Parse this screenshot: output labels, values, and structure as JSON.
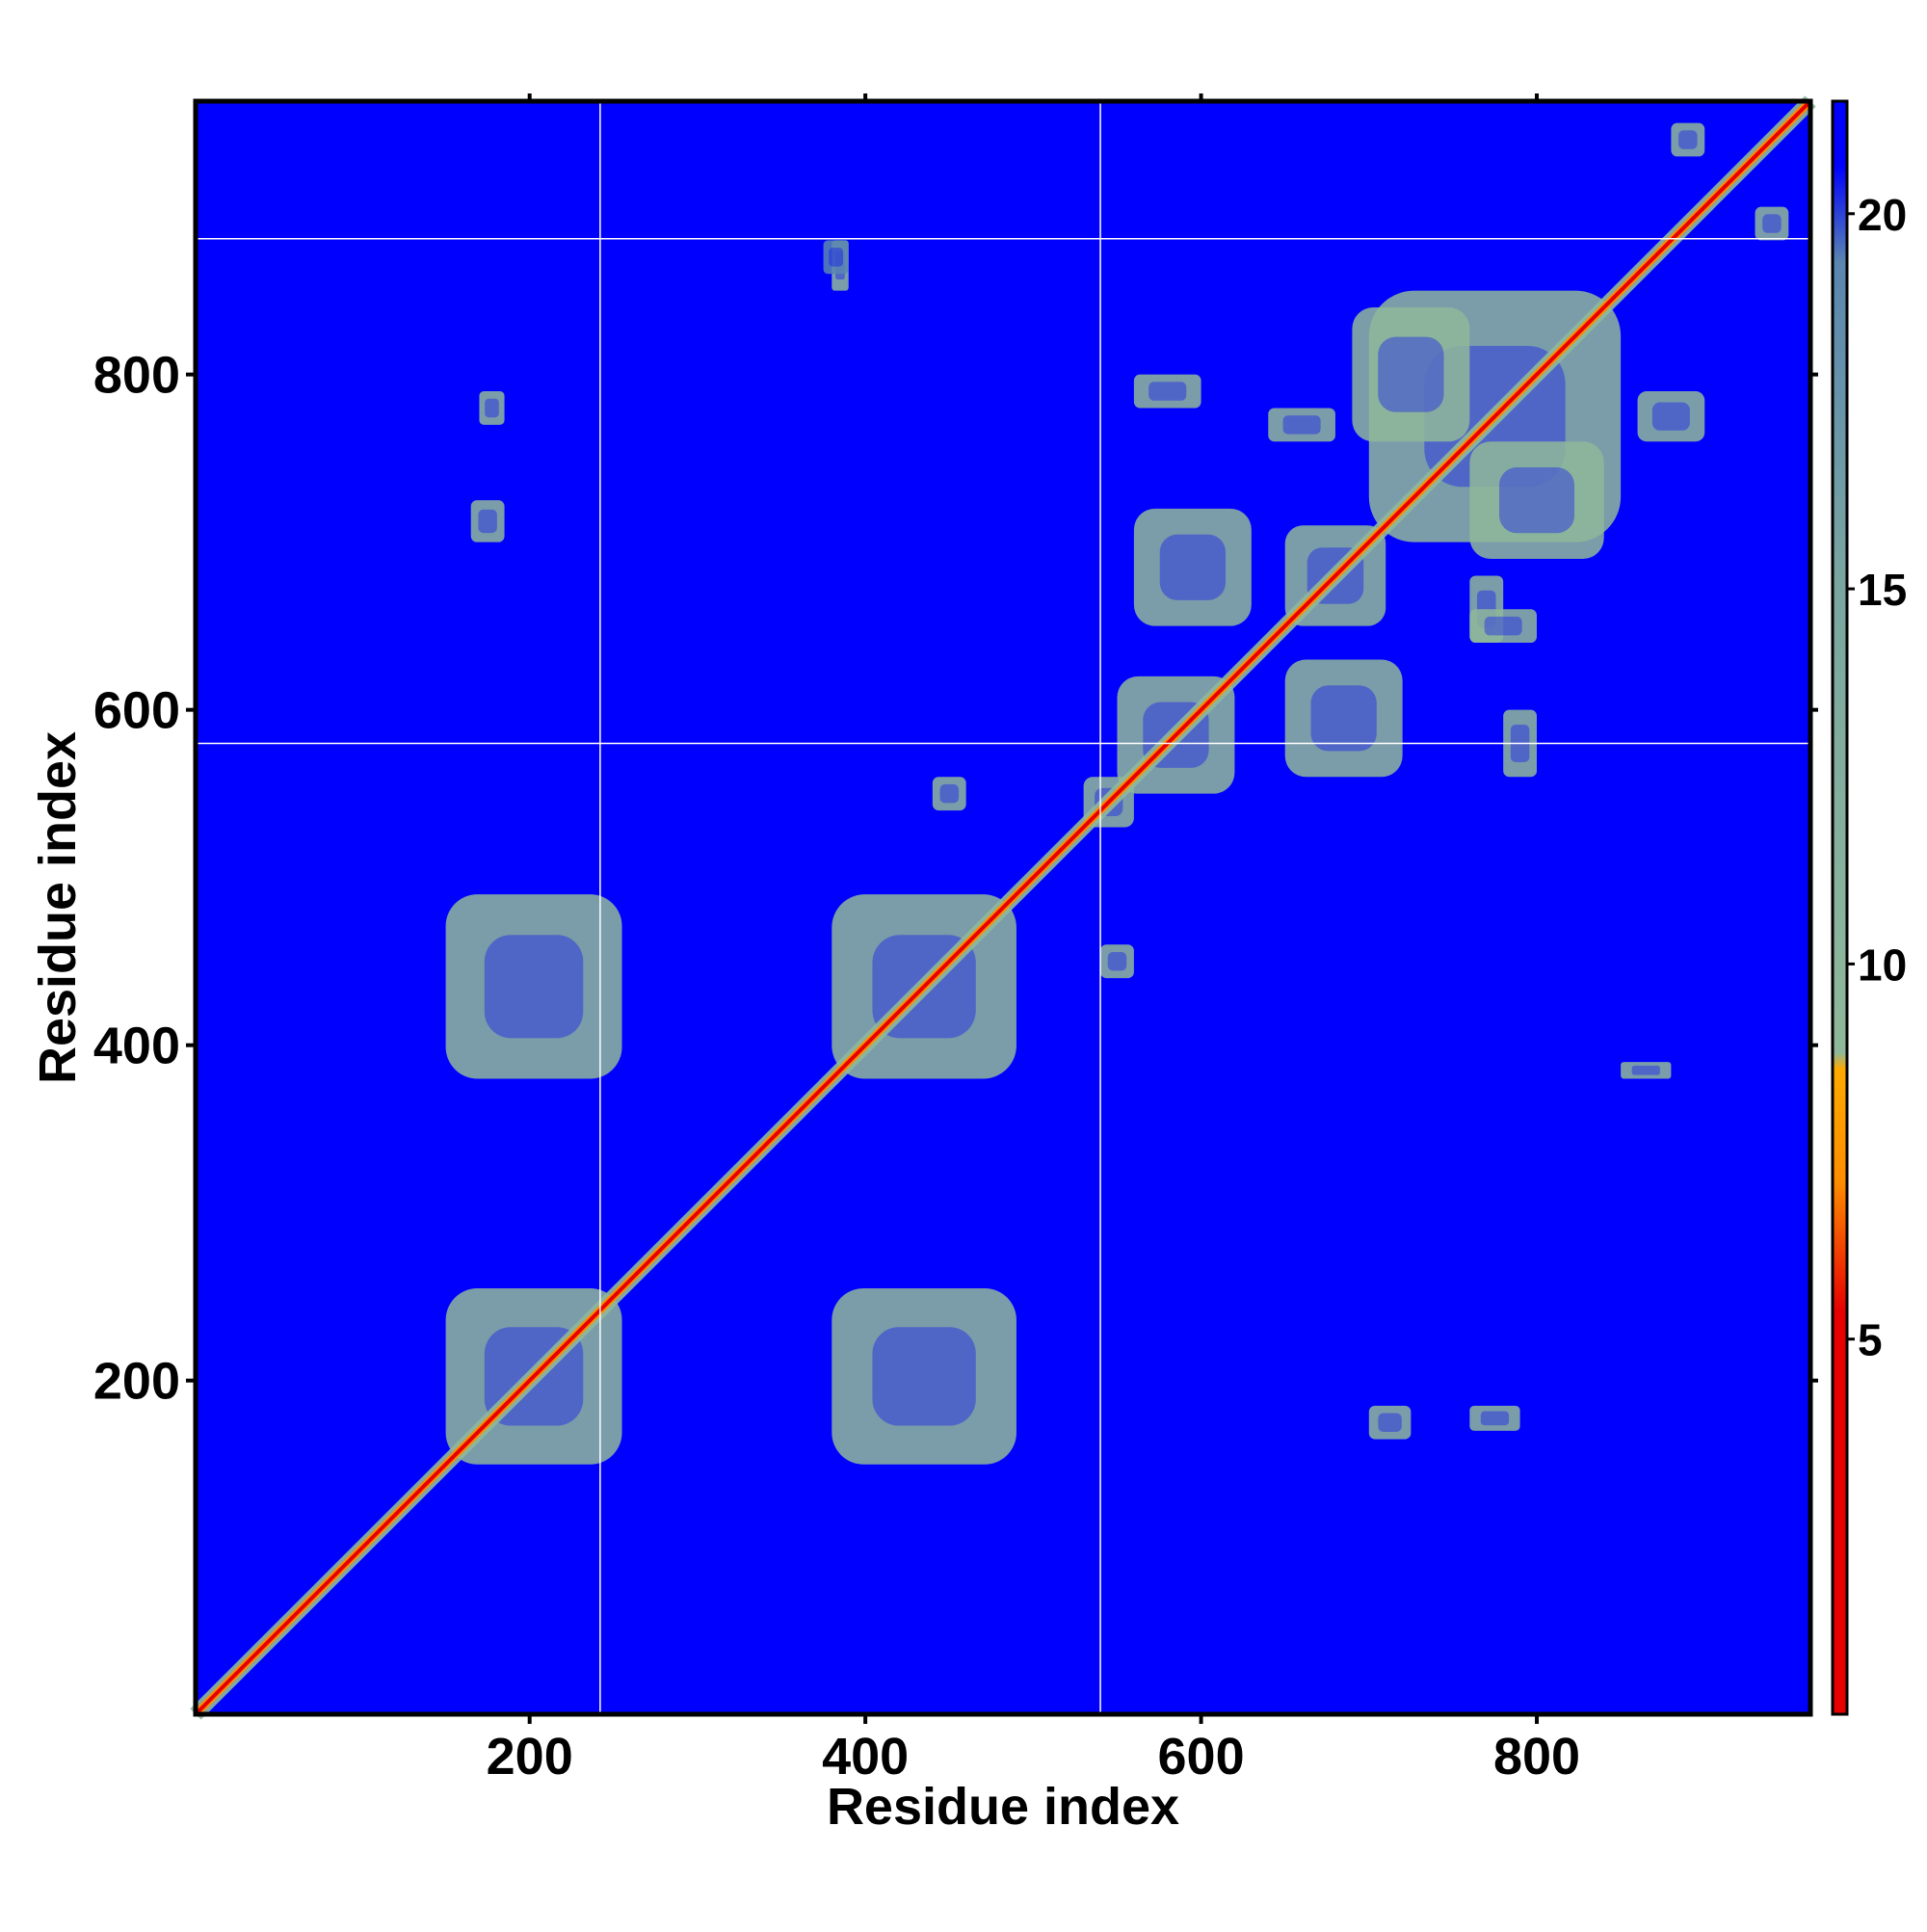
{
  "chart_data": {
    "type": "heatmap",
    "title": "",
    "xlabel": "Residue index",
    "ylabel": "Residue index",
    "xlim": [
      1,
      963
    ],
    "ylim": [
      1,
      963
    ],
    "x_ticks": [
      200,
      400,
      600,
      800
    ],
    "y_ticks": [
      200,
      400,
      600,
      800
    ],
    "x_tick_labels": [
      "200",
      "400",
      "600",
      "800"
    ],
    "y_tick_labels": [
      "200",
      "400",
      "600",
      "800"
    ],
    "domain_boundaries": [
      242,
      540,
      881
    ],
    "colorbar": {
      "range": [
        0,
        21.5
      ],
      "ticks": [
        5,
        10,
        15,
        20
      ],
      "tick_labels": [
        "5",
        "10",
        "15",
        "20"
      ],
      "colors": {
        "near": "#e60000",
        "close": "#ff8c00",
        "mid": "#8fb89a",
        "far": "#5a86b0",
        "background": "#0000ff"
      }
    },
    "contact_blocks": [
      {
        "x": [
          150,
          255
        ],
        "y": [
          150,
          255
        ],
        "level": 10
      },
      {
        "x": [
          150,
          255
        ],
        "y": [
          380,
          490
        ],
        "level": 11
      },
      {
        "x": [
          380,
          490
        ],
        "y": [
          150,
          255
        ],
        "level": 11
      },
      {
        "x": [
          380,
          490
        ],
        "y": [
          380,
          490
        ],
        "level": 10
      },
      {
        "x": [
          550,
          620
        ],
        "y": [
          550,
          620
        ],
        "level": 10
      },
      {
        "x": [
          560,
          630
        ],
        "y": [
          650,
          720
        ],
        "level": 10
      },
      {
        "x": [
          650,
          720
        ],
        "y": [
          560,
          630
        ],
        "level": 10
      },
      {
        "x": [
          650,
          710
        ],
        "y": [
          650,
          710
        ],
        "level": 10
      },
      {
        "x": [
          700,
          850
        ],
        "y": [
          700,
          850
        ],
        "level": 10
      },
      {
        "x": [
          690,
          760
        ],
        "y": [
          760,
          840
        ],
        "level": 10
      },
      {
        "x": [
          760,
          840
        ],
        "y": [
          690,
          760
        ],
        "level": 10
      },
      {
        "x": [
          530,
          560
        ],
        "y": [
          530,
          560
        ],
        "level": 9
      },
      {
        "x": [
          540,
          560
        ],
        "y": [
          440,
          460
        ],
        "level": 11
      },
      {
        "x": [
          440,
          460
        ],
        "y": [
          540,
          560
        ],
        "level": 11
      },
      {
        "x": [
          700,
          725
        ],
        "y": [
          165,
          185
        ],
        "level": 12
      },
      {
        "x": [
          165,
          185
        ],
        "y": [
          700,
          725
        ],
        "level": 12
      },
      {
        "x": [
          760,
          790
        ],
        "y": [
          170,
          185
        ],
        "level": 13
      },
      {
        "x": [
          850,
          880
        ],
        "y": [
          380,
          390
        ],
        "level": 13
      },
      {
        "x": [
          380,
          390
        ],
        "y": [
          850,
          880
        ],
        "level": 13
      },
      {
        "x": [
          170,
          185
        ],
        "y": [
          770,
          790
        ],
        "level": 13
      },
      {
        "x": [
          560,
          600
        ],
        "y": [
          780,
          800
        ],
        "level": 12
      },
      {
        "x": [
          780,
          800
        ],
        "y": [
          560,
          600
        ],
        "level": 12
      },
      {
        "x": [
          640,
          680
        ],
        "y": [
          760,
          780
        ],
        "level": 12
      },
      {
        "x": [
          760,
          780
        ],
        "y": [
          640,
          680
        ],
        "level": 12
      },
      {
        "x": [
          760,
          800
        ],
        "y": [
          640,
          660
        ],
        "level": 12
      },
      {
        "x": [
          860,
          900
        ],
        "y": [
          760,
          790
        ],
        "level": 13
      },
      {
        "x": [
          375,
          390
        ],
        "y": [
          860,
          880
        ],
        "level": 14
      },
      {
        "x": [
          880,
          900
        ],
        "y": [
          930,
          950
        ],
        "level": 13
      },
      {
        "x": [
          930,
          950
        ],
        "y": [
          880,
          900
        ],
        "level": 13
      }
    ]
  }
}
